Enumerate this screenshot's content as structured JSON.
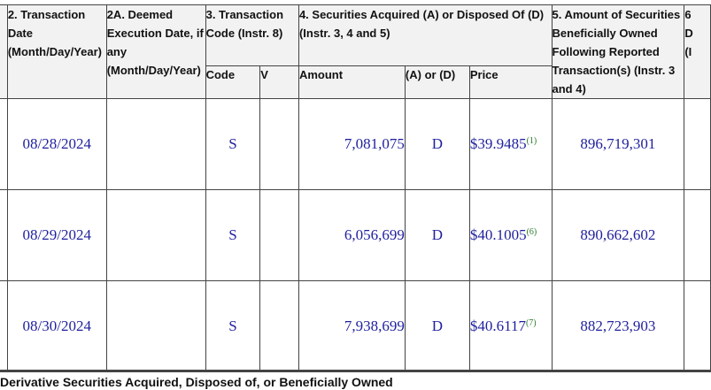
{
  "headers": {
    "col2": "2. Transaction Date (Month/Day/Year)",
    "col2a": "2A. Deemed Execution Date, if any (Month/Day/Year)",
    "col3": "3. Transaction Code (Instr. 8)",
    "col4": "4. Securities Acquired (A) or Disposed Of (D) (Instr. 3, 4 and 5)",
    "col5": "5. Amount of Securities Beneficially Owned Following Reported Transaction(s) (Instr. 3 and 4)",
    "col6_partial": "6",
    "col6_partial2": "D",
    "col6_partial3": "(I",
    "sub_code": "Code",
    "sub_v": "V",
    "sub_amount": "Amount",
    "sub_aord": "(A) or (D)",
    "sub_price": "Price"
  },
  "rows": [
    {
      "date": "08/28/2024",
      "deemed": "",
      "code": "S",
      "v": "",
      "amount": "7,081,075",
      "aord": "D",
      "price": "$39.9485",
      "footnote": "(1)",
      "owned": "896,719,301"
    },
    {
      "date": "08/29/2024",
      "deemed": "",
      "code": "S",
      "v": "",
      "amount": "6,056,699",
      "aord": "D",
      "price": "$40.1005",
      "footnote": "(6)",
      "owned": "890,662,602"
    },
    {
      "date": "08/30/2024",
      "deemed": "",
      "code": "S",
      "v": "",
      "amount": "7,938,699",
      "aord": "D",
      "price": "$40.6117",
      "footnote": "(7)",
      "owned": "882,723,903"
    }
  ],
  "footer": {
    "next_table_title": "Derivative Securities Acquired, Disposed of, or Beneficially Owned"
  }
}
